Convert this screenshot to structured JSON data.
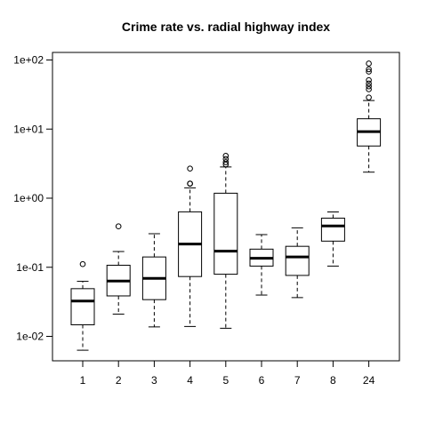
{
  "chart_data": {
    "type": "boxplot",
    "title": "Crime rate vs. radial highway index",
    "xlabel": "",
    "ylabel": "",
    "y_scale": "log",
    "ylim": [
      0.0058,
      125
    ],
    "y_ticks": [
      0.01,
      0.1,
      1,
      10,
      100
    ],
    "y_tick_labels": [
      "1e-02",
      "1e-01",
      "1e+00",
      "1e+01",
      "1e+02"
    ],
    "categories": [
      "1",
      "2",
      "3",
      "4",
      "5",
      "6",
      "7",
      "8",
      "24"
    ],
    "boxes": [
      {
        "category": "1",
        "whisker_low": 0.0063,
        "q1": 0.0147,
        "median": 0.0325,
        "q3": 0.049,
        "whisker_high": 0.0626,
        "outliers": [
          0.111
        ]
      },
      {
        "category": "2",
        "whisker_low": 0.021,
        "q1": 0.0385,
        "median": 0.0632,
        "q3": 0.107,
        "whisker_high": 0.169,
        "outliers": [
          0.391
        ]
      },
      {
        "category": "3",
        "whisker_low": 0.0137,
        "q1": 0.034,
        "median": 0.0691,
        "q3": 0.141,
        "whisker_high": 0.306,
        "outliers": []
      },
      {
        "category": "4",
        "whisker_low": 0.0139,
        "q1": 0.0734,
        "median": 0.217,
        "q3": 0.634,
        "whisker_high": 1.41,
        "outliers": [
          1.63,
          1.62,
          2.68
        ]
      },
      {
        "category": "5",
        "whisker_low": 0.0131,
        "q1": 0.0793,
        "median": 0.171,
        "q3": 1.18,
        "whisker_high": 2.83,
        "outliers": [
          3.08,
          3.32,
          3.69,
          4.1
        ]
      },
      {
        "category": "6",
        "whisker_low": 0.0396,
        "q1": 0.104,
        "median": 0.135,
        "q3": 0.183,
        "whisker_high": 0.297,
        "outliers": []
      },
      {
        "category": "7",
        "whisker_low": 0.0364,
        "q1": 0.0762,
        "median": 0.141,
        "q3": 0.201,
        "whisker_high": 0.372,
        "outliers": []
      },
      {
        "category": "8",
        "whisker_low": 0.104,
        "q1": 0.239,
        "median": 0.397,
        "q3": 0.514,
        "whisker_high": 0.632,
        "outliers": []
      },
      {
        "category": "24",
        "whisker_low": 2.38,
        "q1": 5.69,
        "median": 9.19,
        "q3": 14.1,
        "whisker_high": 25.9,
        "outliers": [
          28.7,
          37.7,
          41.5,
          45.7,
          51.1,
          67.9,
          73.5,
          88.9
        ]
      }
    ],
    "grid": false,
    "legend": "none"
  }
}
